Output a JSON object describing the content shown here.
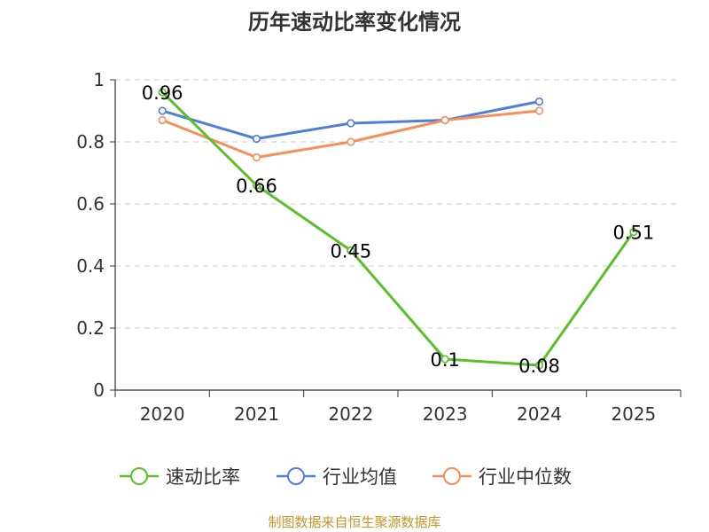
{
  "chart_data": {
    "type": "line",
    "title": "历年速动比率变化情况",
    "categories": [
      "2020",
      "2021",
      "2022",
      "2023",
      "2024",
      "2025"
    ],
    "y_ticks": [
      "0",
      "0.2",
      "0.4",
      "0.6",
      "0.8",
      "1"
    ],
    "ylim": [
      0,
      1
    ],
    "grid": true,
    "legend_position": "bottom",
    "series": [
      {
        "name": "速动比率",
        "color": "#5bbf2a",
        "values": [
          0.96,
          0.66,
          0.45,
          0.1,
          0.08,
          0.51
        ],
        "labels": [
          "0.96",
          "0.66",
          "0.45",
          "0.1",
          "0.08",
          "0.51"
        ]
      },
      {
        "name": "行业均值",
        "color": "#4f7fdb",
        "values": [
          0.9,
          0.81,
          0.86,
          0.87,
          0.93,
          null
        ]
      },
      {
        "name": "行业中位数",
        "color": "#f58f5c",
        "values": [
          0.87,
          0.75,
          0.8,
          0.87,
          0.9,
          null
        ]
      }
    ],
    "source": "制图数据来自恒生聚源数据库"
  }
}
